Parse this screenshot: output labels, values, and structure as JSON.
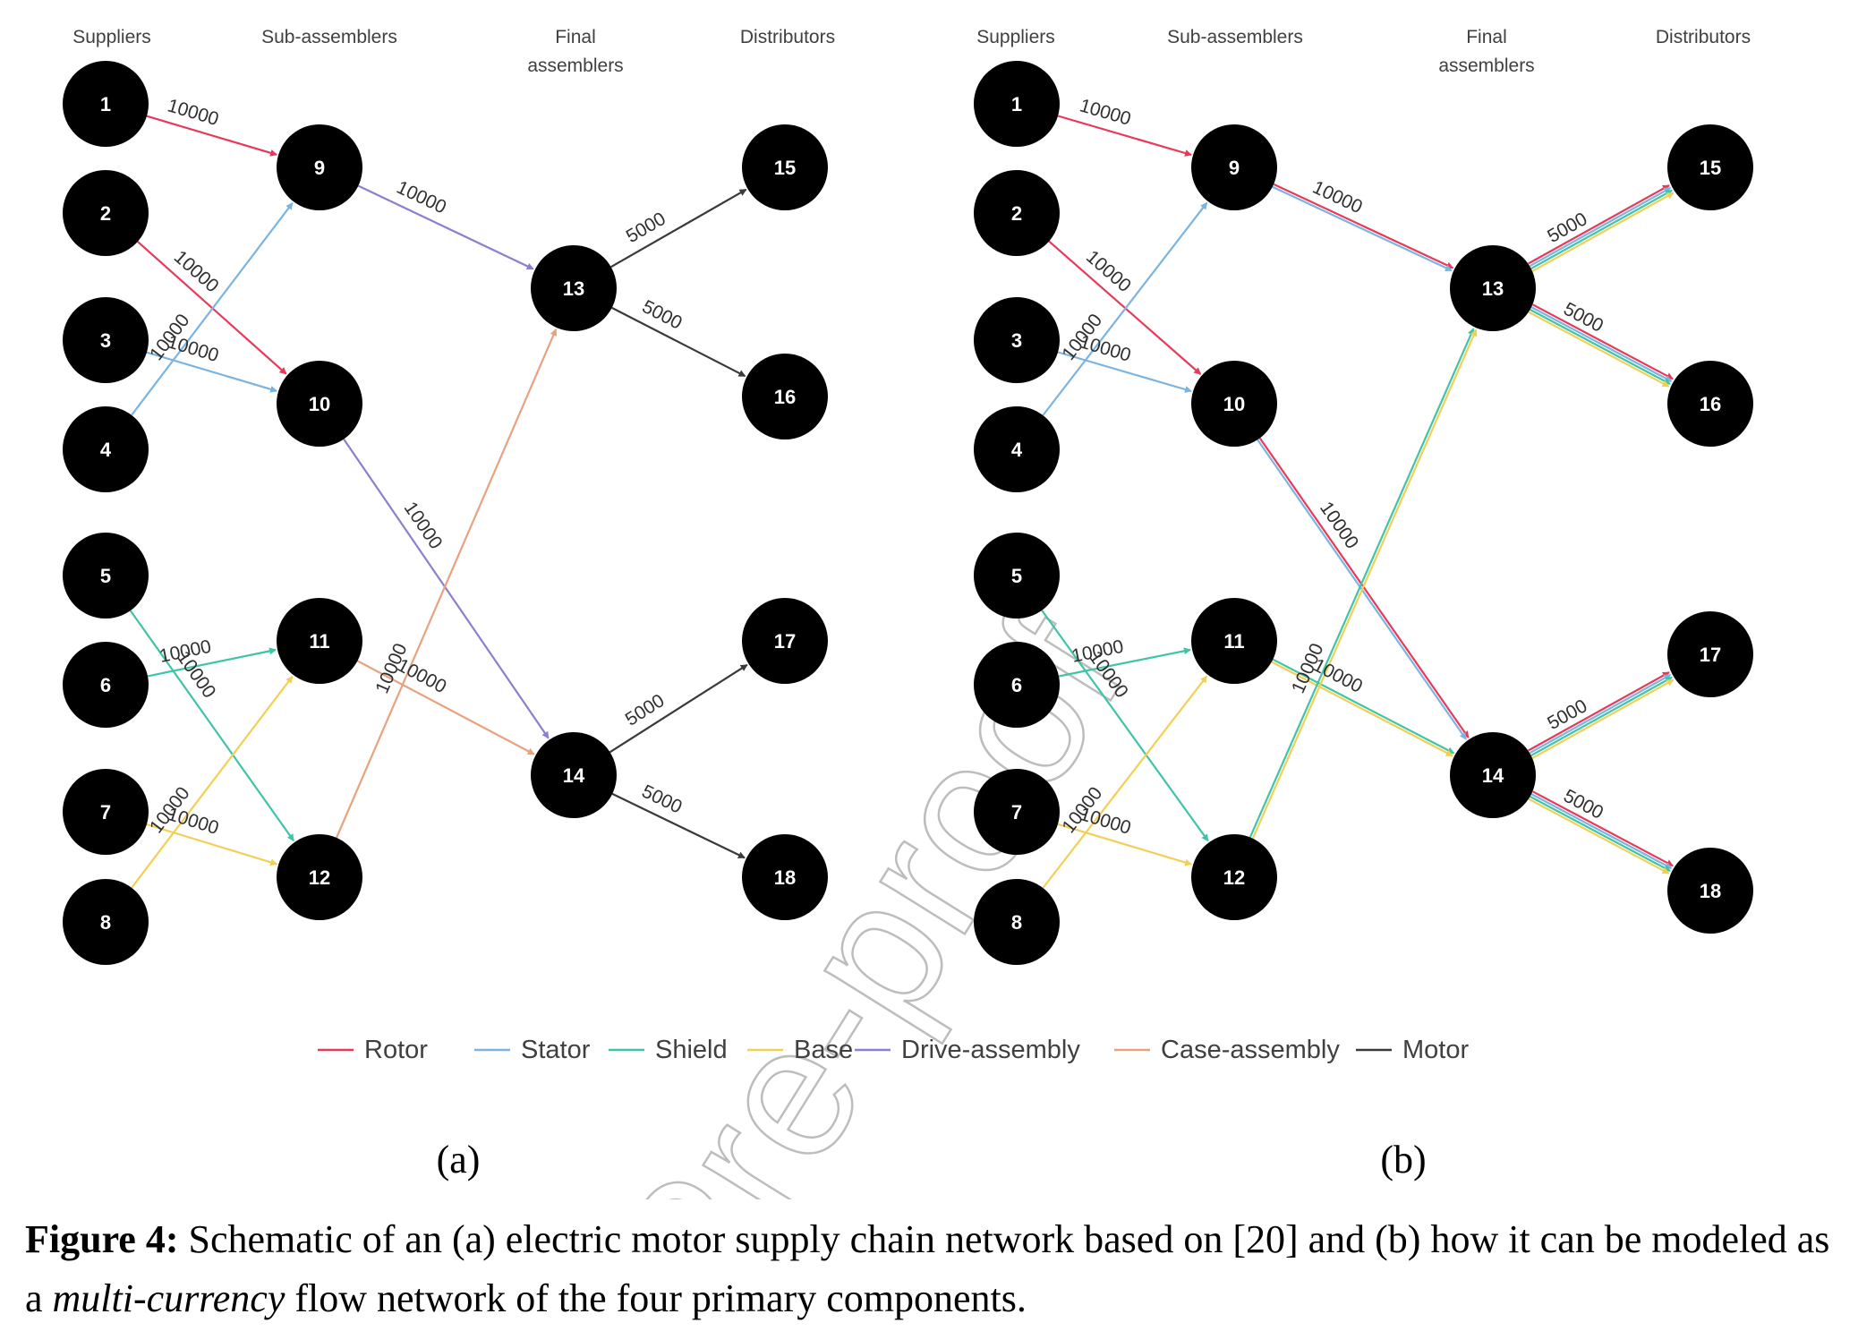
{
  "column_headers": {
    "suppliers": "Suppliers",
    "sub_assemblers": "Sub-assemblers",
    "final_assemblers_line1": "Final",
    "final_assemblers_line2": "assemblers",
    "distributors": "Distributors"
  },
  "nodes": [
    "1",
    "2",
    "3",
    "4",
    "5",
    "6",
    "7",
    "8",
    "9",
    "10",
    "11",
    "12",
    "13",
    "14",
    "15",
    "16",
    "17",
    "18"
  ],
  "legend": [
    {
      "label": "Rotor",
      "color": "#e8395a"
    },
    {
      "label": "Stator",
      "color": "#7bb4e0"
    },
    {
      "label": "Shield",
      "color": "#3fc4a8"
    },
    {
      "label": "Base",
      "color": "#f2cf55"
    },
    {
      "label": "Drive-assembly",
      "color": "#8c7fd0"
    },
    {
      "label": "Case-assembly",
      "color": "#e8a27e"
    },
    {
      "label": "Motor",
      "color": "#3a3a3a"
    }
  ],
  "panel_a": {
    "label": "(a)",
    "edges": [
      {
        "from": "1",
        "to": "9",
        "component": "Rotor",
        "flow": "10000"
      },
      {
        "from": "2",
        "to": "10",
        "component": "Rotor",
        "flow": "10000"
      },
      {
        "from": "3",
        "to": "10",
        "component": "Stator",
        "flow": "10000"
      },
      {
        "from": "4",
        "to": "9",
        "component": "Stator",
        "flow": "10000"
      },
      {
        "from": "5",
        "to": "12",
        "component": "Shield",
        "flow": "10000"
      },
      {
        "from": "6",
        "to": "11",
        "component": "Shield",
        "flow": "10000"
      },
      {
        "from": "7",
        "to": "12",
        "component": "Base",
        "flow": "10000"
      },
      {
        "from": "8",
        "to": "11",
        "component": "Base",
        "flow": "10000"
      },
      {
        "from": "9",
        "to": "13",
        "component": "Drive-assembly",
        "flow": "10000"
      },
      {
        "from": "10",
        "to": "14",
        "component": "Drive-assembly",
        "flow": "10000"
      },
      {
        "from": "11",
        "to": "14",
        "component": "Case-assembly",
        "flow": "10000"
      },
      {
        "from": "12",
        "to": "13",
        "component": "Case-assembly",
        "flow": "10000"
      },
      {
        "from": "13",
        "to": "15",
        "component": "Motor",
        "flow": "5000"
      },
      {
        "from": "13",
        "to": "16",
        "component": "Motor",
        "flow": "5000"
      },
      {
        "from": "14",
        "to": "17",
        "component": "Motor",
        "flow": "5000"
      },
      {
        "from": "14",
        "to": "18",
        "component": "Motor",
        "flow": "5000"
      }
    ]
  },
  "panel_b": {
    "label": "(b)",
    "edges": [
      {
        "from": "1",
        "to": "9",
        "components": [
          "Rotor"
        ],
        "flow": "10000"
      },
      {
        "from": "2",
        "to": "10",
        "components": [
          "Rotor"
        ],
        "flow": "10000"
      },
      {
        "from": "3",
        "to": "10",
        "components": [
          "Stator"
        ],
        "flow": "10000"
      },
      {
        "from": "4",
        "to": "9",
        "components": [
          "Stator"
        ],
        "flow": "10000"
      },
      {
        "from": "5",
        "to": "12",
        "components": [
          "Shield"
        ],
        "flow": "10000"
      },
      {
        "from": "6",
        "to": "11",
        "components": [
          "Shield"
        ],
        "flow": "10000"
      },
      {
        "from": "7",
        "to": "12",
        "components": [
          "Base"
        ],
        "flow": "10000"
      },
      {
        "from": "8",
        "to": "11",
        "components": [
          "Base"
        ],
        "flow": "10000"
      },
      {
        "from": "9",
        "to": "13",
        "components": [
          "Rotor",
          "Stator"
        ],
        "flow": "10000"
      },
      {
        "from": "10",
        "to": "14",
        "components": [
          "Rotor",
          "Stator"
        ],
        "flow": "10000"
      },
      {
        "from": "11",
        "to": "14",
        "components": [
          "Shield",
          "Base"
        ],
        "flow": "10000"
      },
      {
        "from": "12",
        "to": "13",
        "components": [
          "Shield",
          "Base"
        ],
        "flow": "10000"
      },
      {
        "from": "13",
        "to": "15",
        "components": [
          "Rotor",
          "Stator",
          "Shield",
          "Base"
        ],
        "flow": "5000"
      },
      {
        "from": "13",
        "to": "16",
        "components": [
          "Rotor",
          "Stator",
          "Shield",
          "Base"
        ],
        "flow": "5000"
      },
      {
        "from": "14",
        "to": "17",
        "components": [
          "Rotor",
          "Stator",
          "Shield",
          "Base"
        ],
        "flow": "5000"
      },
      {
        "from": "14",
        "to": "18",
        "components": [
          "Rotor",
          "Stator",
          "Shield",
          "Base"
        ],
        "flow": "5000"
      }
    ]
  },
  "watermark": "Pre-proof",
  "caption": {
    "figure_label": "Figure 4:",
    "text_1": " Schematic of an (a) electric motor supply chain network based on [20] and (b) how it can be modeled as a ",
    "italic": "multi-currency",
    "text_2": " flow network of the four primary components."
  }
}
